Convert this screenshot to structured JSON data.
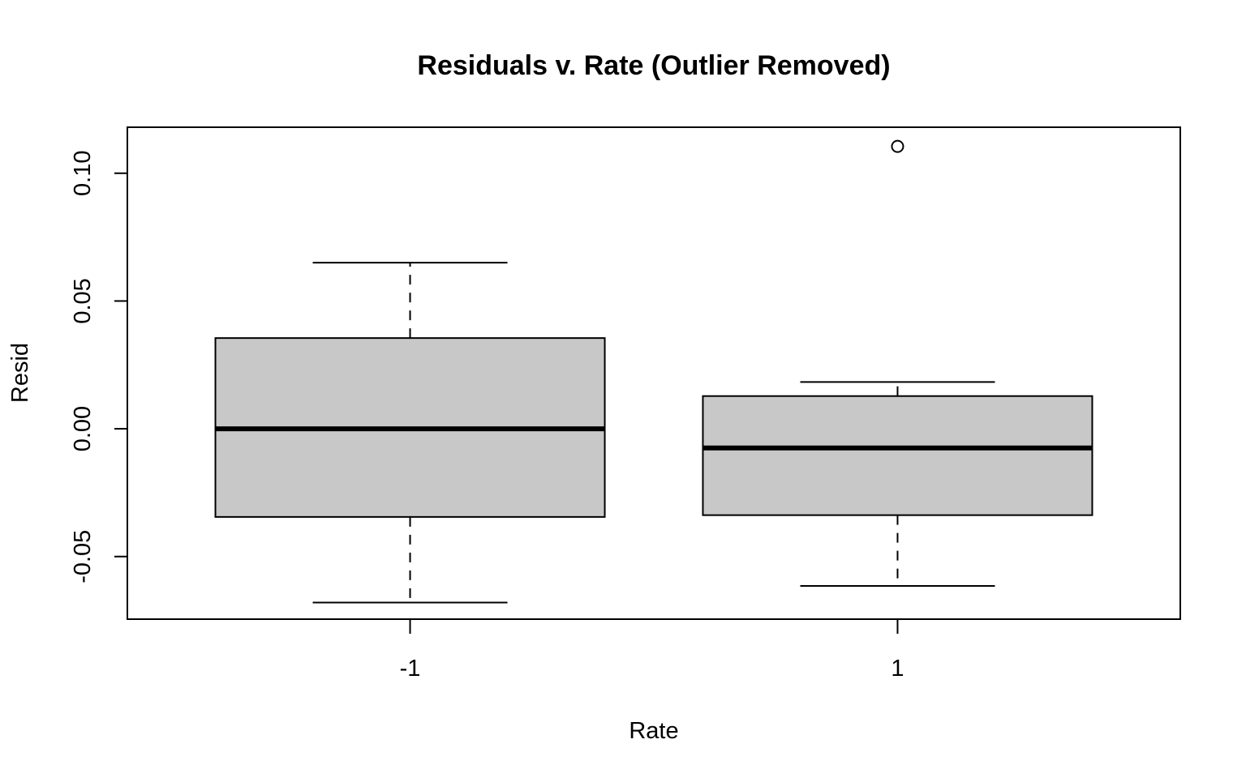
{
  "chart_data": {
    "type": "boxplot",
    "title": "Residuals v. Rate (Outlier Removed)",
    "xlabel": "Rate",
    "ylabel": "Resid",
    "categories": [
      "-1",
      "1"
    ],
    "boxes": [
      {
        "category": "-1",
        "whisker_low": -0.068,
        "q1": -0.0345,
        "median": 0.0,
        "q3": 0.0355,
        "whisker_high": 0.065,
        "outliers": []
      },
      {
        "category": "1",
        "whisker_low": -0.0615,
        "q1": -0.0338,
        "median": -0.0075,
        "q3": 0.0128,
        "whisker_high": 0.0183,
        "outliers": [
          0.1105
        ]
      }
    ],
    "yticks": [
      -0.05,
      0.0,
      0.05,
      0.1
    ],
    "ytick_labels": [
      "-0.05",
      "0.00",
      "0.05",
      "0.10"
    ],
    "ylim": [
      -0.0745,
      0.118
    ],
    "box_fill": "#c8c8c8",
    "grid": false,
    "legend": "none"
  }
}
